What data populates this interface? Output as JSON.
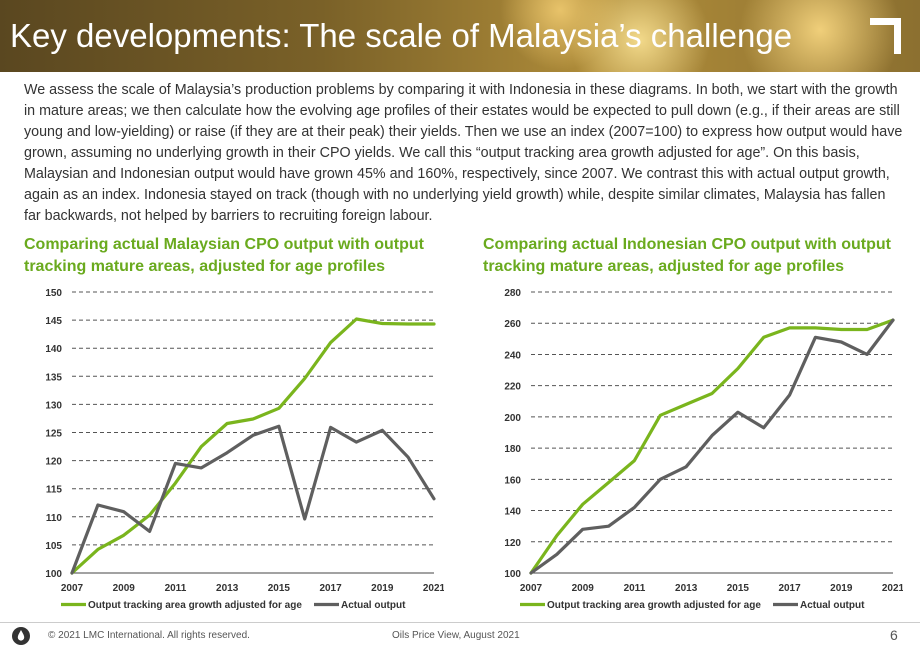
{
  "header": {
    "title": "Key developments: The scale of Malaysia’s challenge"
  },
  "intro": "We assess the scale of Malaysia’s production problems by comparing it with Indonesia in these diagrams. In both, we start with the growth in mature areas; we then calculate how the evolving age profiles of their estates would be expected to pull down (e.g., if their areas are still young and low-yielding) or raise (if they are at their peak) their yields. Then we use an index (2007=100) to express how output would have grown, assuming no underlying growth in their CPO yields. We call this “output tracking area growth adjusted for age”. On this basis, Malaysian and Indonesian output would have grown 45% and 160%, respectively, since 2007. We contrast this with actual output growth, again as an index. Indonesia stayed on track (though with no underlying yield growth) while, despite similar climates, Malaysia has fallen far backwards, not helped by barriers to recruiting foreign labour.",
  "colors": {
    "green": "#7ab51d",
    "grey": "#5f5f5f",
    "title_green": "#6aaa1e"
  },
  "footer": {
    "copyright": "© 2021 LMC International. All rights reserved.",
    "source": "Oils Price View, August 2021",
    "page": "6",
    "icon": "drop-icon"
  },
  "chart_data": [
    {
      "type": "line",
      "title": "Comparing actual Malaysian CPO output with output tracking mature areas, adjusted for age profiles",
      "xlabel": "",
      "ylabel": "",
      "x": [
        2007,
        2008,
        2009,
        2010,
        2011,
        2012,
        2013,
        2014,
        2015,
        2016,
        2017,
        2018,
        2019,
        2020,
        2021
      ],
      "x_tick_labels": [
        "2007",
        "2009",
        "2011",
        "2013",
        "2015",
        "2017",
        "2019",
        "2021"
      ],
      "x_tick_values": [
        2007,
        2009,
        2011,
        2013,
        2015,
        2017,
        2019,
        2021
      ],
      "ylim": [
        100,
        150
      ],
      "y_ticks": [
        100,
        105,
        110,
        115,
        120,
        125,
        130,
        135,
        140,
        145,
        150
      ],
      "grid": "horizontal-dashed",
      "legend_position": "bottom",
      "series": [
        {
          "name": "Output tracking area growth adjusted for age",
          "color": "#7ab51d",
          "values": [
            100.0,
            104.2,
            106.7,
            110.3,
            116.0,
            122.5,
            126.6,
            127.4,
            129.3,
            134.6,
            141.0,
            145.2,
            144.4,
            144.3,
            144.3
          ]
        },
        {
          "name": "Actual output",
          "color": "#5f5f5f",
          "values": [
            100.0,
            112.1,
            110.9,
            107.4,
            119.5,
            118.7,
            121.4,
            124.5,
            126.1,
            109.6,
            125.9,
            123.3,
            125.4,
            120.6,
            113.2
          ]
        }
      ]
    },
    {
      "type": "line",
      "title": "Comparing actual Indonesian CPO output with output tracking mature areas, adjusted for age profiles",
      "xlabel": "",
      "ylabel": "",
      "x": [
        2007,
        2008,
        2009,
        2010,
        2011,
        2012,
        2013,
        2014,
        2015,
        2016,
        2017,
        2018,
        2019,
        2020,
        2021
      ],
      "x_tick_labels": [
        "2007",
        "2009",
        "2011",
        "2013",
        "2015",
        "2017",
        "2019",
        "2021"
      ],
      "x_tick_values": [
        2007,
        2009,
        2011,
        2013,
        2015,
        2017,
        2019,
        2021
      ],
      "ylim": [
        100,
        280
      ],
      "y_ticks": [
        100,
        120,
        140,
        160,
        180,
        200,
        220,
        240,
        260,
        280
      ],
      "grid": "horizontal-dashed",
      "legend_position": "bottom",
      "series": [
        {
          "name": "Output tracking area growth adjusted for age",
          "color": "#7ab51d",
          "values": [
            100,
            124,
            144,
            158,
            172,
            201,
            208,
            215,
            231,
            251,
            257,
            257,
            256,
            256,
            262
          ]
        },
        {
          "name": "Actual output",
          "color": "#5f5f5f",
          "values": [
            100,
            112,
            128,
            130,
            142,
            160,
            168,
            188,
            203,
            193,
            214,
            251,
            248,
            240,
            262
          ]
        }
      ]
    }
  ]
}
